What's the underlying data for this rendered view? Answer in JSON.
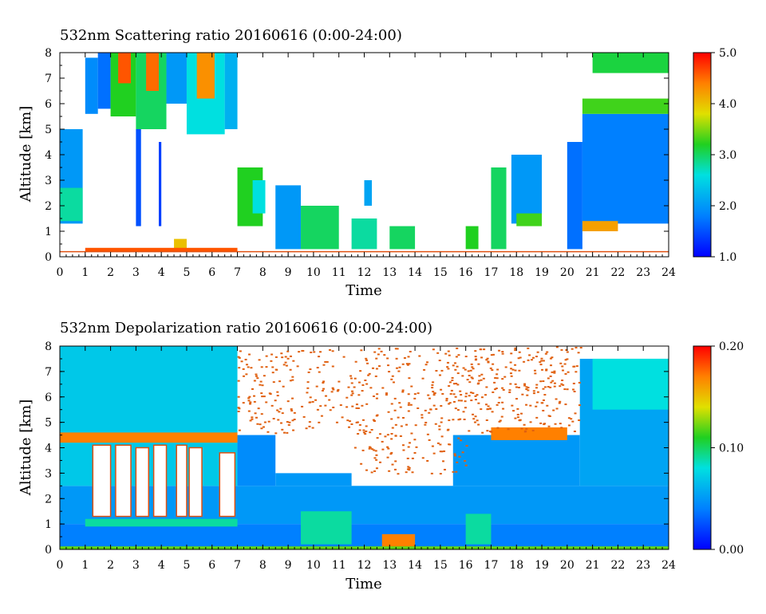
{
  "chart_data": [
    {
      "type": "heatmap",
      "title": "532nm Scattering ratio  20160616 (0:00-24:00)",
      "xlabel": "Time",
      "ylabel": "Altitude [km]",
      "xlim": [
        0,
        24
      ],
      "ylim": [
        0,
        8
      ],
      "x_ticks": [
        0,
        1,
        2,
        3,
        4,
        5,
        6,
        7,
        8,
        9,
        10,
        11,
        12,
        13,
        14,
        15,
        16,
        17,
        18,
        19,
        20,
        21,
        22,
        23,
        24
      ],
      "y_ticks": [
        0,
        1,
        2,
        3,
        4,
        5,
        6,
        7,
        8
      ],
      "colorbar": {
        "min": 1.0,
        "max": 5.0,
        "tick_labels": [
          "1.0",
          "2.0",
          "3.0",
          "4.0",
          "5.0"
        ],
        "tick_values": [
          1,
          2,
          3,
          4,
          5
        ]
      },
      "ground_line_km": 0.2,
      "regions": [
        {
          "x": [
            0,
            0.9
          ],
          "y": [
            1.3,
            5.0
          ],
          "v": 2.0
        },
        {
          "x": [
            0,
            0.9
          ],
          "y": [
            1.4,
            2.7
          ],
          "v": 2.8
        },
        {
          "x": [
            1.0,
            1.5
          ],
          "y": [
            5.6,
            7.8
          ],
          "v": 1.9
        },
        {
          "x": [
            1.5,
            2.0
          ],
          "y": [
            5.8,
            8.0
          ],
          "v": 1.7
        },
        {
          "x": [
            2.0,
            3.0
          ],
          "y": [
            5.5,
            8.0
          ],
          "v": 3.2
        },
        {
          "x": [
            2.3,
            2.8
          ],
          "y": [
            6.8,
            8.0
          ],
          "v": 4.6
        },
        {
          "x": [
            3.0,
            4.2
          ],
          "y": [
            5.0,
            8.0
          ],
          "v": 3.0
        },
        {
          "x": [
            3.4,
            3.9
          ],
          "y": [
            6.5,
            8.0
          ],
          "v": 4.5
        },
        {
          "x": [
            4.2,
            5.0
          ],
          "y": [
            6.0,
            8.0
          ],
          "v": 2.0
        },
        {
          "x": [
            5.0,
            6.5
          ],
          "y": [
            4.8,
            8.0
          ],
          "v": 2.6
        },
        {
          "x": [
            5.4,
            6.1
          ],
          "y": [
            6.2,
            8.0
          ],
          "v": 4.3
        },
        {
          "x": [
            6.5,
            7.0
          ],
          "y": [
            5.0,
            8.0
          ],
          "v": 2.2
        },
        {
          "x": [
            3.0,
            3.2
          ],
          "y": [
            1.2,
            5.0
          ],
          "v": 1.5
        },
        {
          "x": [
            3.9,
            4.0
          ],
          "y": [
            1.2,
            4.5
          ],
          "v": 1.4
        },
        {
          "x": [
            4.5,
            5.0
          ],
          "y": [
            0.2,
            0.7
          ],
          "v": 4.0
        },
        {
          "x": [
            1.0,
            7.0
          ],
          "y": [
            0.2,
            0.35
          ],
          "v": 4.6
        },
        {
          "x": [
            7.0,
            8.0
          ],
          "y": [
            1.2,
            3.5
          ],
          "v": 3.2
        },
        {
          "x": [
            7.6,
            8.1
          ],
          "y": [
            1.7,
            3.0
          ],
          "v": 2.6
        },
        {
          "x": [
            8.5,
            9.5
          ],
          "y": [
            0.3,
            2.8
          ],
          "v": 2.0
        },
        {
          "x": [
            9.5,
            11.0
          ],
          "y": [
            0.3,
            2.0
          ],
          "v": 3.0
        },
        {
          "x": [
            11.5,
            12.5
          ],
          "y": [
            0.3,
            1.5
          ],
          "v": 2.8
        },
        {
          "x": [
            12.0,
            12.3
          ],
          "y": [
            2.0,
            3.0
          ],
          "v": 2.1
        },
        {
          "x": [
            13.0,
            14.0
          ],
          "y": [
            0.3,
            1.2
          ],
          "v": 3.0
        },
        {
          "x": [
            16.0,
            16.5
          ],
          "y": [
            0.3,
            1.2
          ],
          "v": 3.2
        },
        {
          "x": [
            17.0,
            17.6
          ],
          "y": [
            0.3,
            3.5
          ],
          "v": 3.0
        },
        {
          "x": [
            17.8,
            19.0
          ],
          "y": [
            1.3,
            4.0
          ],
          "v": 2.0
        },
        {
          "x": [
            18.0,
            19.0
          ],
          "y": [
            1.2,
            1.7
          ],
          "v": 3.3
        },
        {
          "x": [
            20.0,
            20.6
          ],
          "y": [
            0.3,
            4.5
          ],
          "v": 1.7
        },
        {
          "x": [
            20.6,
            24.0
          ],
          "y": [
            1.3,
            5.6
          ],
          "v": 1.8
        },
        {
          "x": [
            20.6,
            24.0
          ],
          "y": [
            5.6,
            6.2
          ],
          "v": 3.3
        },
        {
          "x": [
            20.6,
            22.0
          ],
          "y": [
            1.0,
            1.4
          ],
          "v": 4.2
        },
        {
          "x": [
            21.0,
            24.0
          ],
          "y": [
            7.2,
            8.0
          ],
          "v": 3.1
        }
      ]
    },
    {
      "type": "heatmap",
      "title": "532nm Depolarization ratio  20160616 (0:00-24:00)",
      "xlabel": "Time",
      "ylabel": "Altitude [km]",
      "xlim": [
        0,
        24
      ],
      "ylim": [
        0,
        8
      ],
      "x_ticks": [
        0,
        1,
        2,
        3,
        4,
        5,
        6,
        7,
        8,
        9,
        10,
        11,
        12,
        13,
        14,
        15,
        16,
        17,
        18,
        19,
        20,
        21,
        22,
        23,
        24
      ],
      "y_ticks": [
        0,
        1,
        2,
        3,
        4,
        5,
        6,
        7,
        8
      ],
      "colorbar": {
        "min": 0.0,
        "max": 0.2,
        "tick_labels": [
          "0.00",
          "0.10",
          "0.20"
        ],
        "tick_values": [
          0,
          0.1,
          0.2
        ]
      },
      "regions": [
        {
          "x": [
            0,
            24
          ],
          "y": [
            0,
            1.0
          ],
          "v": 0.04
        },
        {
          "x": [
            0,
            24
          ],
          "y": [
            1.0,
            2.5
          ],
          "v": 0.05
        },
        {
          "x": [
            0,
            7.0
          ],
          "y": [
            2.5,
            8.0
          ],
          "v": 0.07
        },
        {
          "x": [
            7.0,
            8.5
          ],
          "y": [
            2.5,
            4.5
          ],
          "v": 0.045
        },
        {
          "x": [
            8.5,
            11.5
          ],
          "y": [
            2.5,
            3.0
          ],
          "v": 0.05
        },
        {
          "x": [
            15.5,
            20.5
          ],
          "y": [
            2.5,
            4.5
          ],
          "v": 0.05
        },
        {
          "x": [
            20.5,
            24.0
          ],
          "y": [
            2.5,
            7.5
          ],
          "v": 0.055
        },
        {
          "x": [
            21.0,
            24.0
          ],
          "y": [
            5.5,
            7.5
          ],
          "v": 0.08
        },
        {
          "x": [
            0,
            7.0
          ],
          "y": [
            4.2,
            4.6
          ],
          "v": 0.17
        },
        {
          "x": [
            1.0,
            7.0
          ],
          "y": [
            0.9,
            1.2
          ],
          "v": 0.09
        },
        {
          "x": [
            9.5,
            11.5
          ],
          "y": [
            0.2,
            1.5
          ],
          "v": 0.09
        },
        {
          "x": [
            12.7,
            14.0
          ],
          "y": [
            0.1,
            0.6
          ],
          "v": 0.17
        },
        {
          "x": [
            16.0,
            17.0
          ],
          "y": [
            0.2,
            1.4
          ],
          "v": 0.09
        },
        {
          "x": [
            17.0,
            20.0
          ],
          "y": [
            4.3,
            4.8
          ],
          "v": 0.17
        },
        {
          "x": [
            0,
            24
          ],
          "y": [
            0,
            0.12
          ],
          "v": 0.12
        }
      ],
      "cloud_gaps": [
        {
          "x": [
            1.3,
            2.0
          ],
          "y": [
            1.3,
            4.1
          ]
        },
        {
          "x": [
            2.2,
            2.8
          ],
          "y": [
            1.3,
            4.1
          ]
        },
        {
          "x": [
            3.0,
            3.5
          ],
          "y": [
            1.3,
            4.0
          ]
        },
        {
          "x": [
            3.7,
            4.2
          ],
          "y": [
            1.3,
            4.1
          ]
        },
        {
          "x": [
            4.6,
            5.0
          ],
          "y": [
            1.3,
            4.1
          ]
        },
        {
          "x": [
            5.1,
            5.6
          ],
          "y": [
            1.3,
            4.0
          ]
        },
        {
          "x": [
            6.3,
            6.9
          ],
          "y": [
            1.3,
            3.8
          ]
        }
      ]
    }
  ]
}
